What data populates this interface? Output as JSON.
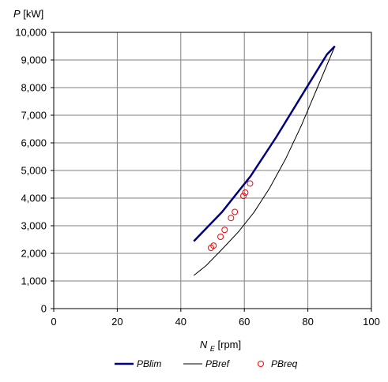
{
  "chart_data": {
    "type": "line",
    "ylabel": {
      "var": "P",
      "unit": "[kW]"
    },
    "xlabel": {
      "var": "N",
      "sub": "E",
      "unit": "[rpm]"
    },
    "xlim": [
      0,
      100
    ],
    "ylim": [
      0,
      10000
    ],
    "x_ticks": [
      0,
      20,
      40,
      60,
      80,
      100
    ],
    "x_tick_labels": [
      "0",
      "20",
      "40",
      "60",
      "80",
      "100"
    ],
    "y_ticks": [
      0,
      1000,
      2000,
      3000,
      4000,
      5000,
      6000,
      7000,
      8000,
      9000,
      10000
    ],
    "y_tick_labels": [
      "0",
      "1,000",
      "2,000",
      "3,000",
      "4,000",
      "5,000",
      "6,000",
      "7,000",
      "8,000",
      "9,000",
      "10,000"
    ],
    "grid": true,
    "legend_position": "bottom",
    "series": [
      {
        "name": "PBlim",
        "kind": "line",
        "color": "#00007f",
        "x": [
          44.1,
          53.0,
          62.0,
          70.0,
          78.0,
          86.0,
          88.5
        ],
        "y": [
          2440,
          3500,
          4800,
          6200,
          7700,
          9200,
          9500
        ]
      },
      {
        "name": "PBref",
        "kind": "line",
        "color": "#000000",
        "x": [
          44.1,
          48.0,
          53.0,
          58.0,
          63.0,
          68.0,
          73.0,
          78.0,
          83.0,
          88.5
        ],
        "y": [
          1200,
          1560,
          2150,
          2760,
          3480,
          4370,
          5420,
          6640,
          8000,
          9500
        ]
      },
      {
        "name": "PBreq",
        "kind": "scatter",
        "color": "#ff0000",
        "x": [
          49.5,
          50.3,
          52.5,
          53.8,
          55.8,
          57.0,
          59.7,
          60.3,
          61.8
        ],
        "y": [
          2200,
          2280,
          2600,
          2850,
          3280,
          3500,
          4080,
          4200,
          4530
        ]
      }
    ]
  }
}
